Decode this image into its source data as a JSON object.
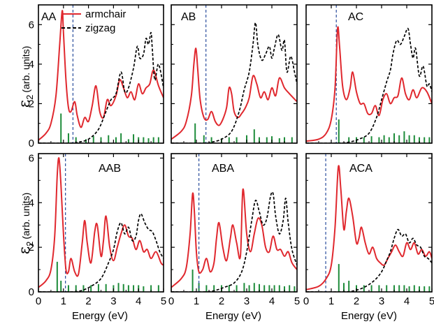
{
  "figure": {
    "ylabel_symbol": "ε",
    "ylabel_subscript": "2",
    "ylabel_unit": "(arb. units)",
    "xlabel": "Energy (eV)"
  },
  "legend": [
    {
      "label": "armchair",
      "color": "#e0282e",
      "dash": "solid"
    },
    {
      "label": "zigzag",
      "color": "#000000",
      "dash": "dashed"
    }
  ],
  "colors": {
    "armchair": "#e0282e",
    "zigzag": "#000000",
    "sticks": "#1e8c3a",
    "gap": "#2a4d9c"
  },
  "chart_data": [
    {
      "type": "line",
      "panel": "AA",
      "title": "AA",
      "xlim": [
        0,
        5
      ],
      "ylim": [
        0,
        7
      ],
      "xticks": [
        0,
        1,
        2,
        3,
        4,
        5
      ],
      "yticks": [
        0,
        2,
        4,
        6
      ],
      "gap_line_x": 1.38,
      "series": [
        {
          "name": "armchair",
          "x": [
            0.0,
            0.3,
            0.5,
            0.7,
            0.85,
            0.95,
            1.0,
            1.1,
            1.2,
            1.3,
            1.45,
            1.55,
            1.7,
            1.85,
            2.0,
            2.15,
            2.3,
            2.45,
            2.6,
            2.75,
            2.9,
            3.1,
            3.25,
            3.4,
            3.55,
            3.7,
            3.85,
            4.0,
            4.15,
            4.3,
            4.45,
            4.6,
            4.8,
            5.0
          ],
          "y": [
            0.15,
            0.5,
            1.0,
            2.4,
            5.0,
            6.7,
            5.6,
            3.2,
            1.8,
            1.6,
            2.1,
            1.4,
            0.8,
            1.3,
            1.1,
            1.9,
            2.9,
            1.6,
            1.3,
            2.2,
            1.9,
            2.4,
            3.2,
            2.8,
            2.3,
            2.6,
            2.2,
            3.0,
            2.5,
            2.8,
            3.0,
            3.7,
            2.9,
            2.3
          ]
        },
        {
          "name": "zigzag",
          "x": [
            0.0,
            1.3,
            1.6,
            2.0,
            2.4,
            2.7,
            2.9,
            3.1,
            3.3,
            3.45,
            3.6,
            3.8,
            3.95,
            4.05,
            4.2,
            4.3,
            4.4,
            4.5,
            4.55,
            4.65,
            4.8,
            5.0
          ],
          "y": [
            0.0,
            0.0,
            0.05,
            0.2,
            0.7,
            1.6,
            2.2,
            2.5,
            3.6,
            2.6,
            2.8,
            3.8,
            4.9,
            4.3,
            4.5,
            5.3,
            5.0,
            5.6,
            4.8,
            3.2,
            4.0,
            2.8
          ]
        }
      ],
      "sticks": {
        "x": [
          0.9,
          1.2,
          1.5,
          1.9,
          2.2,
          2.5,
          2.8,
          3.1,
          3.3,
          3.6,
          3.8,
          4.0,
          4.2,
          4.4,
          4.6,
          4.8
        ],
        "y": [
          1.5,
          0.5,
          0.3,
          0.2,
          0.35,
          0.3,
          0.4,
          0.3,
          0.5,
          0.2,
          0.45,
          0.3,
          0.3,
          0.25,
          0.3,
          0.3
        ]
      }
    },
    {
      "type": "line",
      "panel": "AB",
      "title": "AB",
      "xlim": [
        0,
        5
      ],
      "ylim": [
        0,
        7
      ],
      "xticks": [
        0,
        1,
        2,
        3,
        4,
        5
      ],
      "yticks": [
        0,
        2,
        4,
        6
      ],
      "gap_line_x": 1.38,
      "series": [
        {
          "name": "armchair",
          "x": [
            0.0,
            0.4,
            0.6,
            0.8,
            0.9,
            0.98,
            1.05,
            1.15,
            1.3,
            1.45,
            1.6,
            1.75,
            1.9,
            2.05,
            2.2,
            2.3,
            2.4,
            2.5,
            2.65,
            2.8,
            2.95,
            3.1,
            3.25,
            3.4,
            3.55,
            3.7,
            3.85,
            4.0,
            4.15,
            4.3,
            4.5,
            4.7,
            5.0
          ],
          "y": [
            0.2,
            0.6,
            1.1,
            2.4,
            4.0,
            4.8,
            3.8,
            2.2,
            1.3,
            1.2,
            1.6,
            1.1,
            0.9,
            1.2,
            1.8,
            2.8,
            2.5,
            1.6,
            1.3,
            1.5,
            1.8,
            2.3,
            3.4,
            3.0,
            2.3,
            2.6,
            2.2,
            2.8,
            2.4,
            3.3,
            2.8,
            2.5,
            2.1
          ]
        },
        {
          "name": "zigzag",
          "x": [
            0.0,
            1.3,
            1.6,
            2.0,
            2.4,
            2.7,
            2.9,
            3.1,
            3.25,
            3.35,
            3.45,
            3.6,
            3.75,
            3.9,
            4.0,
            4.1,
            4.25,
            4.4,
            4.5,
            4.6,
            4.75,
            4.9,
            5.0
          ],
          "y": [
            0.0,
            0.0,
            0.05,
            0.2,
            0.6,
            1.6,
            2.7,
            3.6,
            5.0,
            6.1,
            4.9,
            4.2,
            4.5,
            4.9,
            4.3,
            4.8,
            5.5,
            4.7,
            5.2,
            3.6,
            4.4,
            3.6,
            3.0
          ]
        }
      ],
      "sticks": {
        "x": [
          0.95,
          1.3,
          1.6,
          2.0,
          2.3,
          2.6,
          3.0,
          3.3,
          3.5,
          3.8,
          4.0,
          4.3,
          4.5,
          4.8
        ],
        "y": [
          1.0,
          0.4,
          0.3,
          0.25,
          0.3,
          0.3,
          0.4,
          0.7,
          0.3,
          0.3,
          0.35,
          0.25,
          0.3,
          0.3
        ]
      }
    },
    {
      "type": "line",
      "panel": "AC",
      "title": "AC",
      "xlim": [
        0,
        5
      ],
      "ylim": [
        0,
        7
      ],
      "xticks": [
        0,
        1,
        2,
        3,
        4,
        5
      ],
      "yticks": [
        0,
        2,
        4,
        6
      ],
      "gap_line_x": 1.2,
      "series": [
        {
          "name": "armchair",
          "x": [
            0.0,
            0.5,
            0.8,
            1.0,
            1.15,
            1.25,
            1.33,
            1.45,
            1.6,
            1.75,
            1.85,
            2.0,
            2.15,
            2.3,
            2.45,
            2.6,
            2.75,
            2.9,
            3.05,
            3.2,
            3.35,
            3.5,
            3.65,
            3.8,
            3.95,
            4.1,
            4.25,
            4.4,
            4.6,
            4.8,
            5.0
          ],
          "y": [
            0.1,
            0.2,
            0.5,
            1.2,
            2.8,
            5.8,
            4.9,
            2.9,
            2.2,
            2.8,
            3.6,
            2.6,
            2.0,
            2.0,
            1.5,
            1.5,
            1.9,
            1.4,
            2.2,
            2.5,
            2.0,
            2.3,
            2.4,
            3.3,
            2.5,
            2.2,
            2.7,
            2.3,
            2.8,
            2.6,
            2.0
          ]
        },
        {
          "name": "zigzag",
          "x": [
            0.0,
            1.3,
            1.7,
            2.1,
            2.5,
            2.8,
            3.0,
            3.2,
            3.35,
            3.45,
            3.6,
            3.75,
            3.9,
            4.05,
            4.15,
            4.25,
            4.35,
            4.5,
            4.65,
            4.8,
            4.9,
            5.0
          ],
          "y": [
            0.0,
            0.0,
            0.05,
            0.2,
            0.5,
            1.3,
            2.2,
            3.1,
            3.7,
            4.5,
            5.2,
            5.0,
            5.4,
            5.8,
            5.0,
            4.3,
            4.8,
            3.4,
            3.9,
            2.9,
            3.0,
            2.6
          ]
        }
      ],
      "sticks": {
        "x": [
          1.3,
          1.7,
          2.0,
          2.3,
          2.6,
          2.9,
          3.1,
          3.3,
          3.5,
          3.7,
          3.9,
          4.1,
          4.3,
          4.5,
          4.7,
          4.9
        ],
        "y": [
          1.2,
          0.3,
          0.3,
          0.3,
          0.35,
          0.3,
          0.4,
          0.3,
          0.5,
          0.4,
          0.6,
          0.4,
          0.4,
          0.3,
          0.3,
          0.3
        ]
      }
    },
    {
      "type": "line",
      "panel": "AAB",
      "title": "AAB",
      "xlim": [
        0,
        5
      ],
      "ylim": [
        0,
        6.2
      ],
      "xticks": [
        0,
        1,
        2,
        3,
        4,
        5
      ],
      "yticks": [
        0,
        2,
        4,
        6
      ],
      "gap_line_x": 1.08,
      "series": [
        {
          "name": "armchair",
          "x": [
            0.0,
            0.3,
            0.5,
            0.65,
            0.75,
            0.82,
            0.9,
            1.0,
            1.1,
            1.2,
            1.3,
            1.45,
            1.6,
            1.75,
            1.85,
            1.95,
            2.1,
            2.25,
            2.35,
            2.5,
            2.6,
            2.7,
            2.85,
            3.0,
            3.15,
            3.3,
            3.45,
            3.6,
            3.75,
            3.9,
            4.05,
            4.2,
            4.35,
            4.5,
            4.7,
            4.9,
            5.0
          ],
          "y": [
            0.2,
            0.5,
            1.0,
            2.5,
            5.2,
            6.0,
            4.8,
            2.6,
            1.0,
            0.9,
            1.5,
            0.9,
            0.8,
            2.2,
            3.2,
            2.2,
            1.3,
            2.7,
            3.0,
            1.6,
            2.3,
            3.4,
            2.0,
            1.4,
            2.0,
            2.6,
            3.0,
            2.5,
            2.4,
            1.9,
            2.3,
            1.8,
            1.9,
            1.5,
            1.8,
            1.3,
            1.2
          ]
        },
        {
          "name": "zigzag",
          "x": [
            0.0,
            1.3,
            1.7,
            2.1,
            2.5,
            2.8,
            3.0,
            3.15,
            3.3,
            3.45,
            3.6,
            3.75,
            3.9,
            4.0,
            4.1,
            4.25,
            4.4,
            4.55,
            4.7,
            4.85,
            5.0
          ],
          "y": [
            0.0,
            0.0,
            0.05,
            0.25,
            0.6,
            1.3,
            1.9,
            2.7,
            3.1,
            2.6,
            2.9,
            2.3,
            2.5,
            3.2,
            3.5,
            3.1,
            2.8,
            2.7,
            2.3,
            1.8,
            1.5
          ]
        }
      ],
      "sticks": {
        "x": [
          0.75,
          0.9,
          1.2,
          1.5,
          1.8,
          2.1,
          2.4,
          2.7,
          3.0,
          3.2,
          3.4,
          3.6,
          3.8,
          4.0,
          4.2,
          4.5,
          4.8
        ],
        "y": [
          1.35,
          0.5,
          0.3,
          0.3,
          0.3,
          0.3,
          0.35,
          0.35,
          0.3,
          0.4,
          0.35,
          0.3,
          0.3,
          0.3,
          0.25,
          0.3,
          0.3
        ]
      }
    },
    {
      "type": "line",
      "panel": "ABA",
      "title": "ABA",
      "xlim": [
        0,
        5
      ],
      "ylim": [
        0,
        6.2
      ],
      "xticks": [
        0,
        1,
        2,
        3,
        4,
        5
      ],
      "yticks": [
        0,
        2,
        4,
        6
      ],
      "gap_line_x": 1.1,
      "series": [
        {
          "name": "armchair",
          "x": [
            0.0,
            0.4,
            0.6,
            0.75,
            0.85,
            0.92,
            1.0,
            1.1,
            1.25,
            1.4,
            1.55,
            1.7,
            1.8,
            1.9,
            2.05,
            2.2,
            2.35,
            2.45,
            2.6,
            2.75,
            2.85,
            3.0,
            3.15,
            3.3,
            3.45,
            3.6,
            3.75,
            3.9,
            4.05,
            4.2,
            4.35,
            4.5,
            4.65,
            4.8,
            5.0
          ],
          "y": [
            0.2,
            0.6,
            1.1,
            2.6,
            4.4,
            3.6,
            1.8,
            0.9,
            1.0,
            1.5,
            0.9,
            1.3,
            2.4,
            3.1,
            2.0,
            1.4,
            2.4,
            3.0,
            2.2,
            1.6,
            4.6,
            2.6,
            1.8,
            2.6,
            3.3,
            3.0,
            2.0,
            1.8,
            2.5,
            1.9,
            1.9,
            1.6,
            1.8,
            1.3,
            1.0
          ]
        },
        {
          "name": "zigzag",
          "x": [
            0.0,
            1.3,
            1.7,
            2.1,
            2.5,
            2.8,
            3.0,
            3.2,
            3.35,
            3.5,
            3.65,
            3.8,
            3.95,
            4.05,
            4.15,
            4.3,
            4.45,
            4.55,
            4.65,
            4.8,
            5.0
          ],
          "y": [
            0.0,
            0.0,
            0.05,
            0.2,
            0.4,
            0.9,
            1.8,
            3.2,
            4.1,
            3.6,
            3.0,
            3.3,
            4.3,
            4.4,
            3.4,
            2.6,
            3.2,
            4.2,
            3.1,
            1.9,
            1.2
          ]
        }
      ],
      "sticks": {
        "x": [
          0.85,
          1.1,
          1.4,
          1.7,
          2.0,
          2.3,
          2.6,
          2.9,
          3.1,
          3.3,
          3.5,
          3.7,
          3.9,
          4.1,
          4.3,
          4.5,
          4.7,
          4.9
        ],
        "y": [
          1.0,
          0.4,
          0.3,
          0.3,
          0.3,
          0.3,
          0.3,
          0.4,
          0.3,
          0.4,
          0.35,
          0.3,
          0.3,
          0.3,
          0.3,
          0.25,
          0.3,
          0.25
        ]
      }
    },
    {
      "type": "line",
      "panel": "ACA",
      "title": "ACA",
      "xlim": [
        0,
        5
      ],
      "ylim": [
        0,
        6.2
      ],
      "xticks": [
        0,
        1,
        2,
        3,
        4,
        5
      ],
      "yticks": [
        0,
        2,
        4,
        6
      ],
      "gap_line_x": 0.78,
      "series": [
        {
          "name": "armchair",
          "x": [
            0.0,
            0.5,
            0.8,
            1.0,
            1.15,
            1.28,
            1.38,
            1.5,
            1.6,
            1.7,
            1.85,
            2.0,
            2.1,
            2.2,
            2.35,
            2.5,
            2.65,
            2.8,
            2.95,
            3.1,
            3.25,
            3.4,
            3.55,
            3.7,
            3.85,
            4.0,
            4.15,
            4.3,
            4.45,
            4.6,
            4.75,
            4.9,
            5.0
          ],
          "y": [
            0.1,
            0.25,
            0.6,
            1.2,
            2.9,
            5.6,
            4.6,
            2.8,
            3.6,
            4.2,
            3.4,
            2.2,
            2.4,
            2.9,
            2.2,
            1.7,
            2.0,
            1.5,
            1.3,
            1.2,
            1.5,
            1.8,
            2.1,
            1.8,
            1.6,
            2.2,
            1.9,
            2.2,
            1.7,
            1.9,
            1.6,
            1.8,
            1.5
          ]
        },
        {
          "name": "zigzag",
          "x": [
            0.0,
            1.5,
            1.9,
            2.3,
            2.7,
            3.0,
            3.2,
            3.35,
            3.5,
            3.65,
            3.8,
            3.95,
            4.1,
            4.25,
            4.4,
            4.55,
            4.7,
            4.85,
            5.0
          ],
          "y": [
            0.0,
            0.0,
            0.05,
            0.2,
            0.5,
            0.9,
            1.4,
            1.8,
            2.4,
            2.8,
            2.5,
            2.6,
            2.2,
            2.4,
            2.1,
            2.0,
            1.6,
            1.5,
            1.3
          ]
        }
      ],
      "sticks": {
        "x": [
          1.3,
          1.5,
          1.7,
          2.0,
          2.3,
          2.6,
          2.9,
          3.2,
          3.5,
          3.7,
          3.9,
          4.1,
          4.3,
          4.5,
          4.7,
          4.9
        ],
        "y": [
          1.25,
          0.4,
          0.5,
          0.3,
          0.3,
          0.3,
          0.3,
          0.3,
          0.3,
          0.3,
          0.3,
          0.25,
          0.3,
          0.25,
          0.25,
          0.25
        ]
      }
    }
  ]
}
